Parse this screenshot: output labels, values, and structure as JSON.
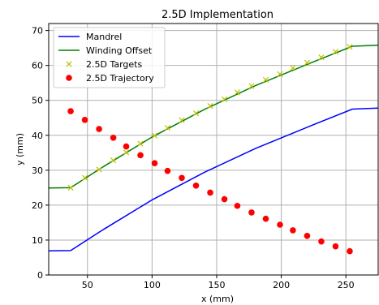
{
  "chart_data": {
    "type": "line",
    "title": "2.5D Implementation",
    "xlabel": "x (mm)",
    "ylabel": "y (mm)",
    "xlim": [
      20,
      275
    ],
    "ylim": [
      0,
      72
    ],
    "xticks": [
      50,
      100,
      150,
      200,
      250
    ],
    "yticks": [
      0,
      10,
      20,
      30,
      40,
      50,
      60,
      70
    ],
    "grid": true,
    "legend_position": "top-left",
    "series": [
      {
        "name": "Mandrel",
        "kind": "line",
        "color": "#0000ff",
        "x": [
          20,
          37,
          60,
          100,
          140,
          180,
          220,
          255,
          275
        ],
        "y": [
          6.9,
          7.0,
          12.5,
          21.5,
          29.3,
          36.2,
          42.3,
          47.5,
          47.8
        ]
      },
      {
        "name": "Winding Offset",
        "kind": "line",
        "color": "#008000",
        "x": [
          20,
          37,
          60,
          100,
          140,
          180,
          220,
          255,
          275
        ],
        "y": [
          24.9,
          25.0,
          30.5,
          39.5,
          47.3,
          54.2,
          60.3,
          65.5,
          65.8
        ]
      },
      {
        "name": "2.5D Targets",
        "kind": "scatter",
        "marker": "x",
        "color": "#bfbf00",
        "x": [
          37,
          48,
          59,
          70,
          80,
          91,
          102,
          112,
          123,
          134,
          145,
          156,
          166,
          177,
          188,
          199,
          209,
          220,
          231,
          242,
          253
        ],
        "y": [
          25.0,
          27.8,
          30.2,
          32.8,
          35.1,
          37.6,
          39.9,
          42.1,
          44.3,
          46.3,
          48.4,
          50.3,
          52.3,
          54.1,
          55.9,
          57.5,
          59.3,
          60.8,
          62.3,
          63.9,
          65.3
        ]
      },
      {
        "name": "2.5D Trajectory",
        "kind": "scatter",
        "marker": "o",
        "color": "#ff0000",
        "x": [
          37,
          48,
          59,
          70,
          80,
          91,
          102,
          112,
          123,
          134,
          145,
          156,
          166,
          177,
          188,
          199,
          209,
          220,
          231,
          242,
          253
        ],
        "y": [
          46.9,
          44.4,
          41.8,
          39.3,
          36.8,
          34.3,
          32.0,
          29.8,
          27.8,
          25.6,
          23.6,
          21.7,
          19.8,
          17.9,
          16.1,
          14.4,
          12.8,
          11.2,
          9.6,
          8.2,
          6.8
        ]
      }
    ]
  }
}
